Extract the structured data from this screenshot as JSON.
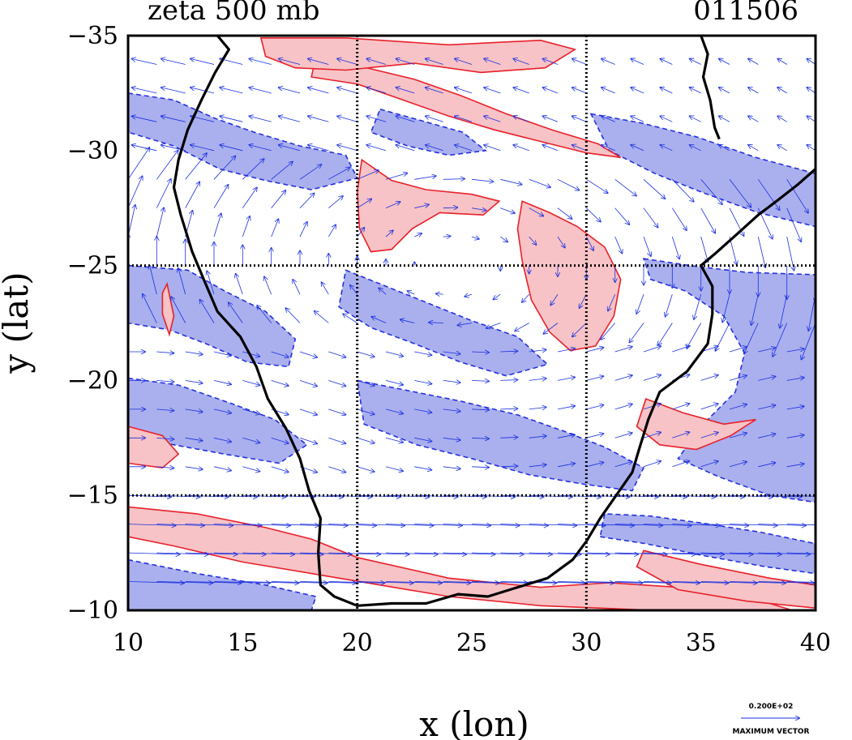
{
  "header": {
    "title": "zeta 500 mb",
    "time": "011506"
  },
  "chart_data": {
    "type": "contour",
    "title": "zeta 500 mb",
    "time_label": "011506",
    "xlabel": "x (lon)",
    "ylabel": "y (lat)",
    "xlim": [
      10,
      40
    ],
    "ylim": [
      -35,
      -10
    ],
    "x_ticks": [
      10,
      15,
      20,
      25,
      30,
      35,
      40
    ],
    "x_tick_labels": [
      "10",
      "15",
      "20",
      "25",
      "30",
      "35",
      "40"
    ],
    "y_ticks": [
      -35,
      -30,
      -25,
      -20,
      -15,
      -10
    ],
    "y_tick_labels": [
      "−35",
      "−30",
      "−25",
      "−20",
      "−15",
      "−10"
    ],
    "grid_x": [
      20,
      30
    ],
    "grid_y": [
      -25,
      -15
    ],
    "grid": "dotted",
    "positive_contour_color": "#e8202a",
    "positive_fill_color": "#f7c3c6",
    "negative_contour_color": "#2430dd",
    "negative_fill_color": "#aab0ee",
    "vector_color": "#1a2fe0",
    "coastline_color": "#000000",
    "positive_regions": [
      {
        "name": "south-west-band",
        "points": [
          [
            10,
            -14.5
          ],
          [
            13,
            -14.2
          ],
          [
            16,
            -13.6
          ],
          [
            18,
            -13.1
          ],
          [
            20,
            -12.3
          ],
          [
            24,
            -11.4
          ],
          [
            28,
            -11.0
          ],
          [
            31,
            -11.2
          ],
          [
            34,
            -11.0
          ],
          [
            36,
            -10.6
          ],
          [
            38,
            -10.3
          ],
          [
            39,
            -10.0
          ],
          [
            33,
            -10.0
          ],
          [
            28,
            -10.2
          ],
          [
            24,
            -10.6
          ],
          [
            21,
            -11.1
          ],
          [
            18,
            -11.6
          ],
          [
            15,
            -12.1
          ],
          [
            12,
            -12.8
          ],
          [
            10,
            -13.2
          ]
        ]
      },
      {
        "name": "south-east-band",
        "points": [
          [
            32.5,
            -12.6
          ],
          [
            35,
            -12.0
          ],
          [
            38,
            -11.4
          ],
          [
            40,
            -11.1
          ],
          [
            40,
            -10.1
          ],
          [
            37,
            -10.4
          ],
          [
            34,
            -10.9
          ],
          [
            32.2,
            -11.9
          ]
        ]
      },
      {
        "name": "west-coast-strip",
        "points": [
          [
            10,
            -18.0
          ],
          [
            11.5,
            -17.6
          ],
          [
            12.2,
            -16.8
          ],
          [
            11.5,
            -16.2
          ],
          [
            10,
            -16.4
          ]
        ]
      },
      {
        "name": "central-west-lobe",
        "points": [
          [
            20.2,
            -29.6
          ],
          [
            21.5,
            -28.7
          ],
          [
            23.0,
            -28.3
          ],
          [
            25.0,
            -28.1
          ],
          [
            26.2,
            -27.8
          ],
          [
            25.5,
            -27.2
          ],
          [
            23.6,
            -27.3
          ],
          [
            22.4,
            -26.6
          ],
          [
            21.5,
            -25.7
          ],
          [
            20.6,
            -25.6
          ],
          [
            20.1,
            -26.6
          ],
          [
            20.0,
            -28.2
          ]
        ]
      },
      {
        "name": "east-interior-lobe",
        "points": [
          [
            27.2,
            -27.8
          ],
          [
            28.4,
            -27.3
          ],
          [
            29.6,
            -26.7
          ],
          [
            30.8,
            -25.8
          ],
          [
            31.5,
            -24.4
          ],
          [
            31.2,
            -22.8
          ],
          [
            30.4,
            -21.5
          ],
          [
            29.3,
            -21.3
          ],
          [
            28.4,
            -22.1
          ],
          [
            27.6,
            -23.5
          ],
          [
            27.2,
            -25.2
          ],
          [
            27.0,
            -26.6
          ]
        ]
      },
      {
        "name": "north-band",
        "points": [
          [
            18.0,
            -33.2
          ],
          [
            20.0,
            -32.9
          ],
          [
            22.0,
            -32.2
          ],
          [
            24.0,
            -31.5
          ],
          [
            26.0,
            -30.9
          ],
          [
            28.0,
            -30.4
          ],
          [
            30.0,
            -29.9
          ],
          [
            31.5,
            -29.7
          ],
          [
            30.5,
            -30.3
          ],
          [
            28.5,
            -30.9
          ],
          [
            26.5,
            -31.6
          ],
          [
            24.5,
            -32.4
          ],
          [
            22.5,
            -33.1
          ],
          [
            20.0,
            -33.7
          ],
          [
            18.2,
            -34.1
          ]
        ]
      },
      {
        "name": "north-top-patches",
        "points": [
          [
            15.8,
            -34.9
          ],
          [
            19.5,
            -34.9
          ],
          [
            24.0,
            -34.6
          ],
          [
            28.0,
            -34.8
          ],
          [
            29.5,
            -34.4
          ],
          [
            28.2,
            -33.6
          ],
          [
            25.4,
            -33.4
          ],
          [
            22.5,
            -33.8
          ],
          [
            19.5,
            -33.5
          ],
          [
            17.3,
            -33.6
          ],
          [
            16.0,
            -34.1
          ]
        ]
      },
      {
        "name": "south-east-coast-lobe",
        "points": [
          [
            32.6,
            -19.2
          ],
          [
            34.2,
            -18.6
          ],
          [
            36.0,
            -18.1
          ],
          [
            37.4,
            -18.3
          ],
          [
            36.3,
            -17.6
          ],
          [
            34.8,
            -17.0
          ],
          [
            33.2,
            -17.2
          ],
          [
            32.2,
            -18.0
          ]
        ]
      },
      {
        "name": "small-west-lobe",
        "points": [
          [
            11.7,
            -24.2
          ],
          [
            12.0,
            -22.8
          ],
          [
            11.8,
            -22.0
          ],
          [
            11.5,
            -22.9
          ],
          [
            11.5,
            -23.8
          ]
        ]
      }
    ],
    "negative_regions": [
      {
        "name": "north-west-band",
        "points": [
          [
            10,
            -32.5
          ],
          [
            12,
            -32.2
          ],
          [
            13.8,
            -31.4
          ],
          [
            15.5,
            -30.8
          ],
          [
            17.5,
            -30.2
          ],
          [
            19.5,
            -29.8
          ],
          [
            20.0,
            -28.8
          ],
          [
            18.0,
            -28.3
          ],
          [
            16.0,
            -28.7
          ],
          [
            14.0,
            -29.2
          ],
          [
            12.0,
            -30.2
          ],
          [
            10,
            -30.8
          ]
        ]
      },
      {
        "name": "west-band-mid",
        "points": [
          [
            10,
            -25.0
          ],
          [
            12.6,
            -24.8
          ],
          [
            14.2,
            -23.9
          ],
          [
            16.0,
            -23.0
          ],
          [
            17.3,
            -21.8
          ],
          [
            17.0,
            -20.6
          ],
          [
            15.2,
            -20.8
          ],
          [
            13.4,
            -21.6
          ],
          [
            11.8,
            -22.2
          ],
          [
            10,
            -22.5
          ]
        ]
      },
      {
        "name": "interior-diagonal",
        "points": [
          [
            19.5,
            -24.8
          ],
          [
            21.0,
            -24.2
          ],
          [
            23.0,
            -23.4
          ],
          [
            25.0,
            -22.6
          ],
          [
            27.0,
            -21.9
          ],
          [
            28.3,
            -20.7
          ],
          [
            26.5,
            -20.2
          ],
          [
            24.5,
            -20.8
          ],
          [
            22.5,
            -21.6
          ],
          [
            20.6,
            -22.3
          ],
          [
            19.2,
            -23.2
          ]
        ]
      },
      {
        "name": "central-block",
        "points": [
          [
            20.0,
            -20.0
          ],
          [
            22.0,
            -19.6
          ],
          [
            24.5,
            -19.1
          ],
          [
            27.0,
            -18.5
          ],
          [
            29.0,
            -17.8
          ],
          [
            30.8,
            -17.1
          ],
          [
            32.5,
            -16.2
          ],
          [
            32.0,
            -15.2
          ],
          [
            29.8,
            -15.5
          ],
          [
            27.5,
            -15.9
          ],
          [
            25.0,
            -16.6
          ],
          [
            22.6,
            -17.2
          ],
          [
            20.3,
            -18.1
          ]
        ]
      },
      {
        "name": "east-block",
        "points": [
          [
            32.5,
            -25.3
          ],
          [
            34.5,
            -25.0
          ],
          [
            37.0,
            -24.7
          ],
          [
            40,
            -24.6
          ],
          [
            40,
            -14.7
          ],
          [
            38.0,
            -15.0
          ],
          [
            35.8,
            -15.8
          ],
          [
            34.0,
            -16.6
          ],
          [
            35.0,
            -18.0
          ],
          [
            36.5,
            -19.5
          ],
          [
            36.9,
            -21.2
          ],
          [
            36.0,
            -22.8
          ],
          [
            34.3,
            -23.9
          ],
          [
            32.8,
            -24.4
          ]
        ]
      },
      {
        "name": "north-east-lobe",
        "points": [
          [
            30.2,
            -31.6
          ],
          [
            32.4,
            -31.2
          ],
          [
            34.8,
            -30.6
          ],
          [
            37.4,
            -29.7
          ],
          [
            40,
            -29.0
          ],
          [
            40,
            -26.7
          ],
          [
            37.5,
            -27.3
          ],
          [
            35.0,
            -28.2
          ],
          [
            33.0,
            -29.0
          ],
          [
            31.0,
            -30.0
          ]
        ]
      },
      {
        "name": "south-west-block",
        "points": [
          [
            10,
            -20.1
          ],
          [
            12.2,
            -19.8
          ],
          [
            14.5,
            -19.0
          ],
          [
            16.4,
            -18.3
          ],
          [
            17.8,
            -17.2
          ],
          [
            16.6,
            -16.4
          ],
          [
            14.2,
            -16.8
          ],
          [
            12.0,
            -17.2
          ],
          [
            10,
            -17.6
          ]
        ]
      },
      {
        "name": "southern-lane",
        "points": [
          [
            10,
            -12.2
          ],
          [
            13.0,
            -11.6
          ],
          [
            16.0,
            -11.1
          ],
          [
            18.2,
            -10.6
          ],
          [
            18.0,
            -10.0
          ],
          [
            10,
            -10.0
          ]
        ]
      },
      {
        "name": "south-east-lane",
        "points": [
          [
            30.6,
            -13.2
          ],
          [
            32.6,
            -12.9
          ],
          [
            35.0,
            -12.4
          ],
          [
            37.8,
            -11.9
          ],
          [
            40,
            -11.6
          ],
          [
            40,
            -12.9
          ],
          [
            37.6,
            -13.4
          ],
          [
            35.0,
            -13.8
          ],
          [
            32.8,
            -14.1
          ],
          [
            30.8,
            -14.2
          ]
        ]
      },
      {
        "name": "north-inner-blob",
        "points": [
          [
            21.0,
            -31.8
          ],
          [
            22.8,
            -31.3
          ],
          [
            24.6,
            -30.8
          ],
          [
            25.6,
            -30.0
          ],
          [
            24.0,
            -29.8
          ],
          [
            22.2,
            -30.2
          ],
          [
            20.6,
            -30.8
          ]
        ]
      }
    ],
    "vector_field": {
      "max_vector_label": "0.200E+02",
      "max_vector_title": "MAXIMUM VECTOR",
      "max_speed": 20,
      "regime": "westerlies in south, weak anticyclone over interior, easterlies along north-east"
    },
    "coastline": {
      "west_coast": [
        [
          13.9,
          -35.0
        ],
        [
          14.4,
          -34.4
        ],
        [
          13.8,
          -33.4
        ],
        [
          13.2,
          -32.2
        ],
        [
          12.6,
          -30.9
        ],
        [
          12.2,
          -29.6
        ],
        [
          12.0,
          -28.4
        ],
        [
          12.3,
          -27.2
        ],
        [
          12.8,
          -25.6
        ],
        [
          13.3,
          -24.4
        ],
        [
          13.9,
          -23.0
        ],
        [
          14.9,
          -21.9
        ],
        [
          15.6,
          -20.6
        ],
        [
          16.1,
          -19.2
        ],
        [
          16.9,
          -17.9
        ],
        [
          17.5,
          -16.6
        ],
        [
          17.9,
          -15.2
        ],
        [
          18.4,
          -14.0
        ],
        [
          18.3,
          -12.5
        ],
        [
          18.4,
          -11.1
        ],
        [
          19.0,
          -10.6
        ],
        [
          20.0,
          -10.2
        ],
        [
          21.5,
          -10.3
        ],
        [
          23.0,
          -10.3
        ],
        [
          24.4,
          -10.7
        ],
        [
          25.7,
          -10.6
        ],
        [
          27.0,
          -11.0
        ],
        [
          28.3,
          -11.4
        ],
        [
          29.4,
          -12.2
        ],
        [
          30.0,
          -13.0
        ],
        [
          30.6,
          -14.0
        ],
        [
          31.3,
          -15.0
        ],
        [
          32.0,
          -16.0
        ],
        [
          32.3,
          -17.0
        ],
        [
          32.7,
          -18.3
        ],
        [
          33.2,
          -19.5
        ],
        [
          34.4,
          -20.4
        ],
        [
          35.3,
          -21.6
        ],
        [
          35.5,
          -22.9
        ],
        [
          35.5,
          -24.1
        ],
        [
          35.0,
          -25.0
        ],
        [
          35.6,
          -25.5
        ],
        [
          36.5,
          -26.3
        ],
        [
          37.5,
          -27.2
        ],
        [
          38.3,
          -27.8
        ],
        [
          39.2,
          -28.5
        ],
        [
          40.0,
          -29.2
        ]
      ],
      "lake_east": [
        [
          35.0,
          -35.0
        ],
        [
          35.3,
          -34.2
        ],
        [
          35.1,
          -33.2
        ],
        [
          35.4,
          -32.2
        ],
        [
          35.6,
          -31.0
        ],
        [
          35.8,
          -30.5
        ]
      ]
    }
  },
  "legend": {
    "value": "0.200E+02",
    "title": "MAXIMUM VECTOR"
  }
}
